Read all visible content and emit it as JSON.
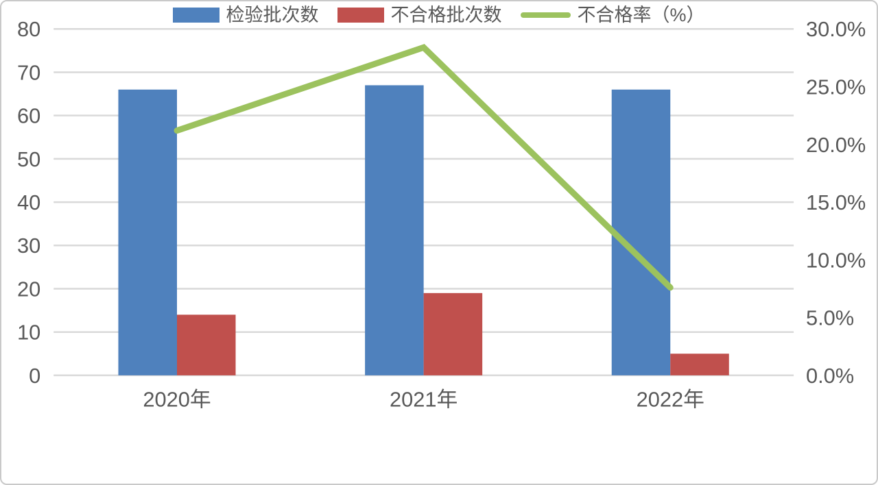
{
  "chart_data": {
    "type": "combo-bar-line",
    "categories": [
      "2020年",
      "2021年",
      "2022年"
    ],
    "series": [
      {
        "name": "检验批次数",
        "type": "bar",
        "axis": "left",
        "color": "#4F81BD",
        "values": [
          66,
          67,
          66
        ]
      },
      {
        "name": "不合格批次数",
        "type": "bar",
        "axis": "left",
        "color": "#C0504D",
        "values": [
          14,
          19,
          5
        ]
      },
      {
        "name": "不合格率（%）",
        "type": "line",
        "axis": "right",
        "color": "#9CC25E",
        "values": [
          21.2,
          28.4,
          7.6
        ]
      }
    ],
    "left_axis": {
      "min": 0,
      "max": 80,
      "ticks": [
        "0",
        "10",
        "20",
        "30",
        "40",
        "50",
        "60",
        "70",
        "80"
      ]
    },
    "right_axis": {
      "min": 0,
      "max": 30,
      "ticks": [
        "0.0%",
        "5.0%",
        "10.0%",
        "15.0%",
        "20.0%",
        "25.0%",
        "30.0%"
      ]
    },
    "grid": true,
    "legend_position": "bottom",
    "colors": {
      "grid": "#D9D9D9",
      "text": "#595959",
      "background": "#FFFFFF",
      "border": "#C9C9C9"
    }
  }
}
